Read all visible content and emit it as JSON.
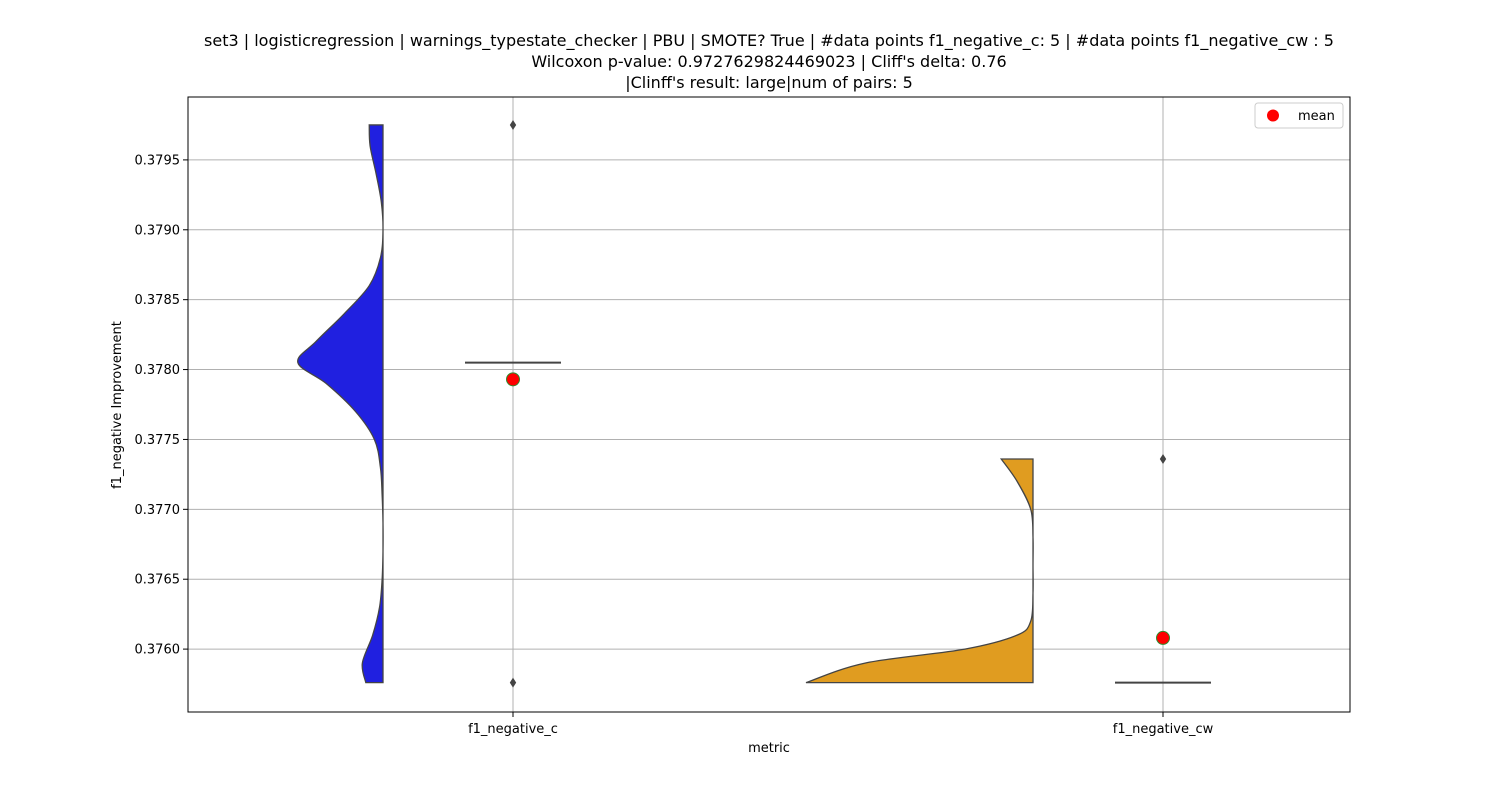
{
  "chart_data": {
    "type": "violin",
    "title": [
      "set3 | logisticregression | warnings_typestate_checker | PBU | SMOTE? True | #data points f1_negative_c: 5 | #data points f1_negative_cw : 5",
      "Wilcoxon p-value: 0.9727629824469023 | Cliff's delta: 0.76",
      "|Clinff's result: large|num of pairs: 5"
    ],
    "xlabel": "metric",
    "ylabel": "f1_negative Improvement",
    "categories": [
      "f1_negative_c",
      "f1_negative_cw"
    ],
    "ylim": [
      0.37555,
      0.37995
    ],
    "yticks": [
      0.376,
      0.3765,
      0.377,
      0.3775,
      0.378,
      0.3785,
      0.379,
      0.3795
    ],
    "ytick_labels": [
      "0.3760",
      "0.3765",
      "0.3770",
      "0.3775",
      "0.3780",
      "0.3785",
      "0.3790",
      "0.3795"
    ],
    "grid": true,
    "legend": {
      "position": "top-right",
      "label": "mean"
    },
    "series": [
      {
        "category": "f1_negative_c",
        "color": "#2020e0",
        "min": 0.37576,
        "max": 0.37975,
        "median": 0.37805,
        "mean": 0.37793,
        "outliers": [
          0.37975,
          0.37576
        ],
        "density_y": [
          0.37576,
          0.3759,
          0.3761,
          0.3763,
          0.3765,
          0.3767,
          0.3769,
          0.3771,
          0.3773,
          0.3775,
          0.3777,
          0.3779,
          0.37805,
          0.3782,
          0.3784,
          0.3786,
          0.3788,
          0.379,
          0.3792,
          0.3794,
          0.3796,
          0.37975
        ],
        "density_w": [
          0.2,
          0.24,
          0.12,
          0.04,
          0.01,
          0.0,
          0.0,
          0.01,
          0.03,
          0.1,
          0.32,
          0.66,
          0.99,
          0.78,
          0.45,
          0.16,
          0.03,
          0.0,
          0.02,
          0.08,
          0.15,
          0.16
        ]
      },
      {
        "category": "f1_negative_cw",
        "color": "#e09c20",
        "min": 0.37576,
        "max": 0.37736,
        "median": 0.37576,
        "mean": 0.37608,
        "outliers": [
          0.37736
        ],
        "density_y": [
          0.37576,
          0.3759,
          0.376,
          0.3761,
          0.3762,
          0.3764,
          0.3766,
          0.3768,
          0.377,
          0.3772,
          0.37736
        ],
        "density_w": [
          1.0,
          0.74,
          0.3,
          0.07,
          0.01,
          0.0,
          0.0,
          0.0,
          0.01,
          0.07,
          0.14
        ]
      }
    ]
  }
}
